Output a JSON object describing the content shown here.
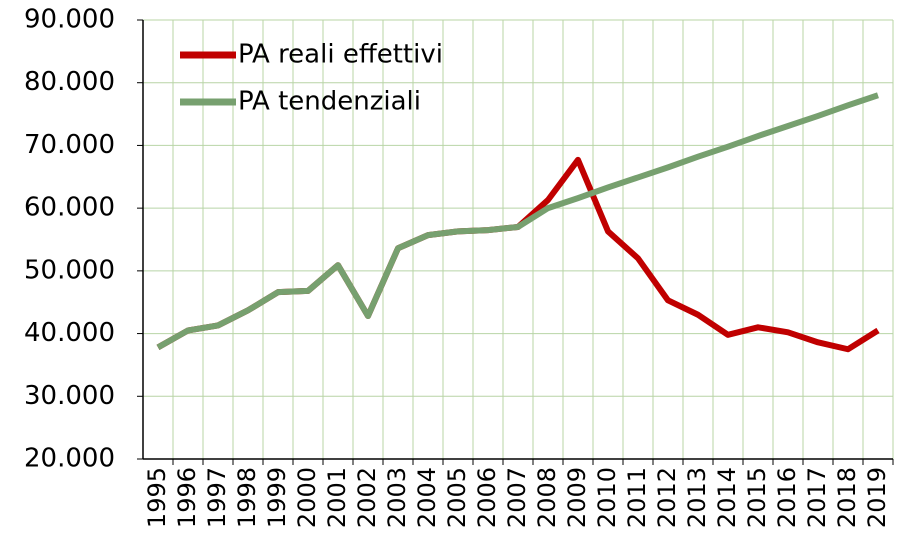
{
  "chart_data": {
    "type": "line",
    "categories": [
      "1995",
      "1996",
      "1997",
      "1998",
      "1999",
      "2000",
      "2001",
      "2002",
      "2003",
      "2004",
      "2005",
      "2006",
      "2007",
      "2008",
      "2009",
      "2010",
      "2011",
      "2012",
      "2013",
      "2014",
      "2015",
      "2016",
      "2017",
      "2018",
      "2019"
    ],
    "series": [
      {
        "name": "PA reali effettivi",
        "color": "#c00000",
        "values": [
          37800,
          40500,
          41300,
          43700,
          46600,
          46800,
          50900,
          42800,
          53600,
          55700,
          56300,
          56500,
          57000,
          61300,
          67700,
          56300,
          52000,
          45300,
          43000,
          39800,
          41000,
          40200,
          38600,
          37500,
          40500
        ]
      },
      {
        "name": "PA tendenziali",
        "color": "#77a06f",
        "values": [
          37800,
          40500,
          41300,
          43700,
          46600,
          46800,
          50900,
          42800,
          53600,
          55700,
          56300,
          56500,
          57000,
          60000,
          61600,
          63300,
          64900,
          66500,
          68200,
          69800,
          71500,
          73100,
          74700,
          76400,
          78000
        ]
      }
    ],
    "ylim": [
      20000,
      90000
    ],
    "yticks": [
      {
        "value": 20000,
        "label": "20.000"
      },
      {
        "value": 30000,
        "label": "30.000"
      },
      {
        "value": 40000,
        "label": "40.000"
      },
      {
        "value": 50000,
        "label": "50.000"
      },
      {
        "value": 60000,
        "label": "60.000"
      },
      {
        "value": 70000,
        "label": "70.000"
      },
      {
        "value": 80000,
        "label": "80.000"
      },
      {
        "value": 90000,
        "label": "90.000"
      }
    ],
    "grid": true,
    "legend": "top-left"
  }
}
